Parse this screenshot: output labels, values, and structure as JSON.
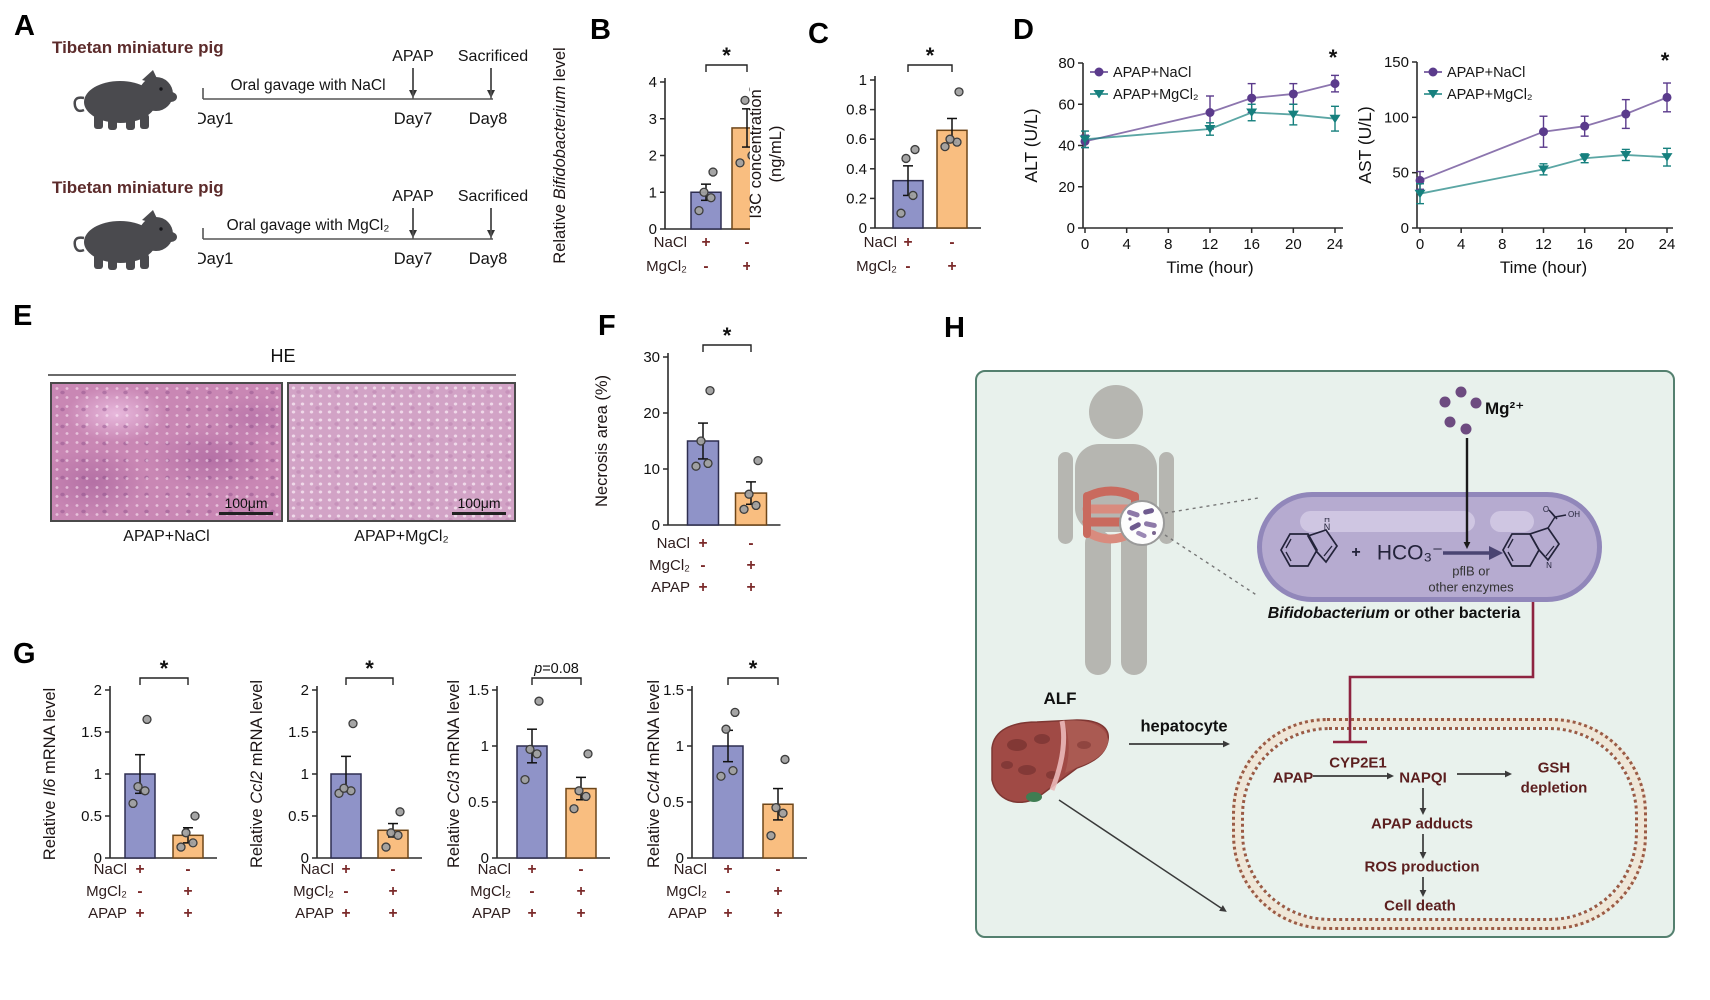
{
  "colors": {
    "bar_blue": "#8f93c8",
    "bar_orange": "#f9be80",
    "point_gray": "#a0a0a0",
    "line_purple": "#5b3b8c",
    "line_teal": "#16807e",
    "accent_maroon": "#7b2a2a",
    "inhibit_red": "#8e2440",
    "box_green": "#e8f1ec"
  },
  "panel_labels": {
    "A": "A",
    "B": "B",
    "C": "C",
    "D": "D",
    "E": "E",
    "F": "F",
    "G": "G",
    "H": "H"
  },
  "panelA": {
    "rows": [
      {
        "title": "Tibetan miniature pig",
        "gavage": "Oral gavage  with NaCl",
        "apap": "APAP",
        "sac": "Sacrificed",
        "day1": "Day1",
        "day7": "Day7",
        "day8": "Day8"
      },
      {
        "title": "Tibetan miniature pig",
        "gavage": "Oral gavage with MgCl₂",
        "apap": "APAP",
        "sac": "Sacrificed",
        "day1": "Day1",
        "day7": "Day7",
        "day8": "Day8"
      }
    ]
  },
  "panelE": {
    "stain": "HE",
    "images": [
      {
        "caption": "APAP+NaCl",
        "scale": "100μm"
      },
      {
        "caption": "APAP+MgCl₂",
        "scale": "100μm"
      }
    ]
  },
  "panelH": {
    "mg": "Mg²⁺",
    "plus": "+",
    "hco3": "HCO₃⁻",
    "enz1": "pflB or",
    "enz2": "other enzymes",
    "bact_italic": "Bifidobacterium",
    "bact_rest": " or other bacteria",
    "alf": "ALF",
    "hepatocyte": "hepatocyte",
    "apap": "APAP",
    "cyp": "CYP2E1",
    "napqi": "NAPQI",
    "gsh1": "GSH",
    "gsh2": "depletion",
    "adducts": "APAP adducts",
    "ros": "ROS production",
    "death": "Cell death",
    "atom_n": "N",
    "atom_h": "H",
    "atom_o": "O",
    "atom_oh": "OH"
  },
  "chart_data": [
    {
      "id": "B",
      "type": "bar",
      "ylabel": [
        [
          {
            "t": "Relative ",
            "i": false
          },
          {
            "t": "Bifidobacterium",
            "i": true
          },
          {
            "t": " level",
            "i": false
          }
        ]
      ],
      "ylim": [
        0,
        4
      ],
      "yticks": [
        0,
        1,
        2,
        3,
        4
      ],
      "values": [
        1.0,
        2.75
      ],
      "errors": [
        0.22,
        0.52
      ],
      "points": [
        [
          0.5,
          0.85,
          1.0,
          1.55
        ],
        [
          1.8,
          2.0,
          3.5,
          3.8
        ]
      ],
      "sig": "*",
      "rows": [
        {
          "label": "NaCl",
          "marks": [
            "+",
            "-"
          ]
        },
        {
          "label": "MgCl₂",
          "marks": [
            "-",
            "+"
          ]
        }
      ]
    },
    {
      "id": "C",
      "type": "bar",
      "ylabel": [
        [
          {
            "t": "I3C concentration",
            "i": false
          }
        ],
        [
          {
            "t": "(ng/mL)",
            "i": false
          }
        ]
      ],
      "ylim": [
        0,
        1
      ],
      "yticks": [
        0,
        0.2,
        0.4,
        0.6,
        0.8,
        1
      ],
      "values": [
        0.32,
        0.66
      ],
      "errors": [
        0.1,
        0.08
      ],
      "points": [
        [
          0.1,
          0.22,
          0.47,
          0.53
        ],
        [
          0.55,
          0.58,
          0.6,
          0.92
        ]
      ],
      "sig": "*",
      "rows": [
        {
          "label": "NaCl",
          "marks": [
            "+",
            "-"
          ]
        },
        {
          "label": "MgCl₂",
          "marks": [
            "-",
            "+"
          ]
        }
      ]
    },
    {
      "id": "ALT",
      "type": "line",
      "ylabel": "ALT (U/L)",
      "xlabel": "Time (hour)",
      "ylim": [
        0,
        80
      ],
      "yticks": [
        0,
        20,
        40,
        60,
        80
      ],
      "xlim": [
        0,
        24
      ],
      "xticks": [
        0,
        4,
        8,
        12,
        16,
        20,
        24
      ],
      "series": [
        {
          "name": "APAP+NaCl",
          "marker": "circle",
          "color_key": "line_purple",
          "x": [
            0,
            12,
            16,
            20,
            24
          ],
          "y": [
            42,
            56,
            63,
            65,
            70
          ],
          "err": [
            3,
            8,
            7,
            5,
            4
          ]
        },
        {
          "name": "APAP+MgCl₂",
          "marker": "triangle",
          "color_key": "line_teal",
          "x": [
            0,
            12,
            16,
            20,
            24
          ],
          "y": [
            43,
            48,
            56,
            55,
            53
          ],
          "err": [
            4,
            3,
            4,
            5,
            6
          ]
        }
      ],
      "sig": "*"
    },
    {
      "id": "AST",
      "type": "line",
      "ylabel": "AST (U/L)",
      "xlabel": "Time (hour)",
      "ylim": [
        0,
        150
      ],
      "yticks": [
        0,
        50,
        100,
        150
      ],
      "xlim": [
        0,
        24
      ],
      "xticks": [
        0,
        4,
        8,
        12,
        16,
        20,
        24
      ],
      "series": [
        {
          "name": "APAP+NaCl",
          "marker": "circle",
          "color_key": "line_purple",
          "x": [
            0,
            12,
            16,
            20,
            24
          ],
          "y": [
            43,
            87,
            92,
            103,
            118
          ],
          "err": [
            8,
            14,
            9,
            13,
            13
          ]
        },
        {
          "name": "APAP+MgCl₂",
          "marker": "triangle",
          "color_key": "line_teal",
          "x": [
            0,
            12,
            16,
            20,
            24
          ],
          "y": [
            31,
            53,
            63,
            66,
            64
          ],
          "err": [
            9,
            5,
            4,
            5,
            8
          ]
        }
      ],
      "sig": "*"
    },
    {
      "id": "F",
      "type": "bar",
      "ylabel": [
        [
          {
            "t": "Necrosis area (%)",
            "i": false
          }
        ]
      ],
      "ylim": [
        0,
        30
      ],
      "yticks": [
        0,
        10,
        20,
        30
      ],
      "values": [
        15,
        5.7
      ],
      "errors": [
        3.2,
        2.0
      ],
      "points": [
        [
          10.5,
          11,
          15,
          24
        ],
        [
          2.8,
          3.5,
          5.5,
          11.5
        ]
      ],
      "sig": "*",
      "rows": [
        {
          "label": "NaCl",
          "marks": [
            "+",
            "-"
          ]
        },
        {
          "label": "MgCl₂",
          "marks": [
            "-",
            "+"
          ]
        },
        {
          "label": "APAP",
          "marks": [
            "+",
            "+"
          ]
        }
      ]
    },
    {
      "id": "Il6",
      "type": "bar",
      "ylabel": [
        [
          {
            "t": "Relative ",
            "i": false
          },
          {
            "t": "Il6",
            "i": true
          },
          {
            "t": " mRNA level",
            "i": false
          }
        ]
      ],
      "ylim": [
        0,
        2
      ],
      "yticks": [
        0,
        0.5,
        1,
        1.5,
        2
      ],
      "values": [
        1.0,
        0.27
      ],
      "errors": [
        0.23,
        0.09
      ],
      "points": [
        [
          0.65,
          0.8,
          0.85,
          1.65
        ],
        [
          0.13,
          0.18,
          0.3,
          0.5
        ]
      ],
      "sig": "*",
      "rows": [
        {
          "label": "NaCl",
          "marks": [
            "+",
            "-"
          ]
        },
        {
          "label": "MgCl₂",
          "marks": [
            "-",
            "+"
          ]
        },
        {
          "label": "APAP",
          "marks": [
            "+",
            "+"
          ]
        }
      ]
    },
    {
      "id": "Ccl2",
      "type": "bar",
      "ylabel": [
        [
          {
            "t": "Relative ",
            "i": false
          },
          {
            "t": "Ccl2",
            "i": true
          },
          {
            "t": " mRNA level",
            "i": false
          }
        ]
      ],
      "ylim": [
        0,
        2
      ],
      "yticks": [
        0,
        0.5,
        1,
        1.5,
        2
      ],
      "values": [
        1.0,
        0.33
      ],
      "errors": [
        0.21,
        0.08
      ],
      "points": [
        [
          0.77,
          0.8,
          0.83,
          1.6
        ],
        [
          0.13,
          0.27,
          0.3,
          0.55
        ]
      ],
      "sig": "*",
      "rows": [
        {
          "label": "NaCl",
          "marks": [
            "+",
            "-"
          ]
        },
        {
          "label": "MgCl₂",
          "marks": [
            "-",
            "+"
          ]
        },
        {
          "label": "APAP",
          "marks": [
            "+",
            "+"
          ]
        }
      ]
    },
    {
      "id": "Ccl3",
      "type": "bar",
      "ylabel": [
        [
          {
            "t": "Relative ",
            "i": false
          },
          {
            "t": "Ccl3",
            "i": true
          },
          {
            "t": " mRNA level",
            "i": false
          }
        ]
      ],
      "ylim": [
        0,
        1.5
      ],
      "yticks": [
        0,
        0.5,
        1,
        1.5
      ],
      "values": [
        1.0,
        0.62
      ],
      "errors": [
        0.15,
        0.1
      ],
      "points": [
        [
          0.7,
          0.93,
          0.97,
          1.4
        ],
        [
          0.44,
          0.55,
          0.6,
          0.93
        ]
      ],
      "sig": "p=0.08",
      "rows": [
        {
          "label": "NaCl",
          "marks": [
            "+",
            "-"
          ]
        },
        {
          "label": "MgCl₂",
          "marks": [
            "-",
            "+"
          ]
        },
        {
          "label": "APAP",
          "marks": [
            "+",
            "+"
          ]
        }
      ]
    },
    {
      "id": "Ccl4",
      "type": "bar",
      "ylabel": [
        [
          {
            "t": "Relative ",
            "i": false
          },
          {
            "t": "Ccl4",
            "i": true
          },
          {
            "t": " mRNA level",
            "i": false
          }
        ]
      ],
      "ylim": [
        0,
        1.5
      ],
      "yticks": [
        0,
        0.5,
        1,
        1.5
      ],
      "values": [
        1.0,
        0.48
      ],
      "errors": [
        0.14,
        0.14
      ],
      "points": [
        [
          0.73,
          0.78,
          1.15,
          1.3
        ],
        [
          0.2,
          0.4,
          0.45,
          0.88
        ]
      ],
      "sig": "*",
      "rows": [
        {
          "label": "NaCl",
          "marks": [
            "+",
            "-"
          ]
        },
        {
          "label": "MgCl₂",
          "marks": [
            "-",
            "+"
          ]
        },
        {
          "label": "APAP",
          "marks": [
            "+",
            "+"
          ]
        }
      ]
    }
  ]
}
